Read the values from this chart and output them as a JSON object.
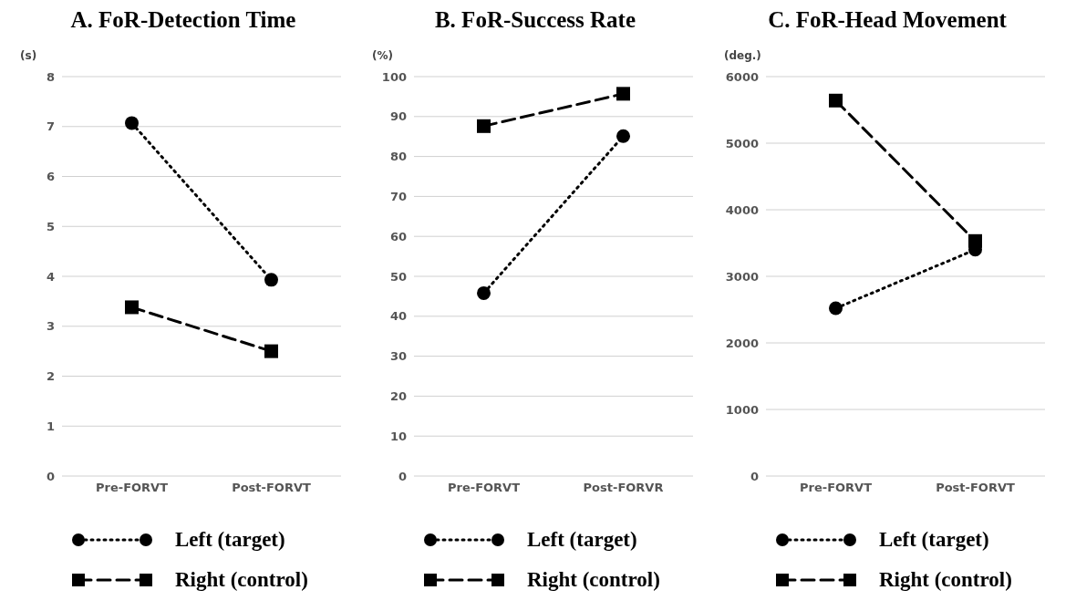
{
  "chart_data": [
    {
      "type": "line",
      "title": "A. FoR-Detection Time",
      "ylabel": "(s)",
      "categories": [
        "Pre-FORVT",
        "Post-FORVT"
      ],
      "ylim": [
        0,
        8
      ],
      "yticks": [
        0,
        1,
        2,
        3,
        4,
        5,
        6,
        7,
        8
      ],
      "grid": "y",
      "legend": "bottom",
      "series": [
        {
          "name": "Left (target)",
          "color": "#000000",
          "values": [
            7.07,
            3.93
          ],
          "marker": "circle",
          "line_style": "dotted"
        },
        {
          "name": "Right (control)",
          "color": "#000000",
          "values": [
            3.38,
            2.5
          ],
          "marker": "square",
          "line_style": "dashed"
        }
      ]
    },
    {
      "type": "line",
      "title": "B. FoR-Success Rate",
      "ylabel": "(%)",
      "categories": [
        "Pre-FORVT",
        "Post-FORVR"
      ],
      "ylim": [
        0,
        100
      ],
      "yticks": [
        0,
        10,
        20,
        30,
        40,
        50,
        60,
        70,
        80,
        90,
        100
      ],
      "grid": "y",
      "legend": "bottom",
      "series": [
        {
          "name": "Left (target)",
          "color": "#000000",
          "values": [
            45.8,
            85.1
          ],
          "marker": "circle",
          "line_style": "dotted"
        },
        {
          "name": "Right (control)",
          "color": "#000000",
          "values": [
            87.6,
            95.7
          ],
          "marker": "square",
          "line_style": "dashed"
        }
      ]
    },
    {
      "type": "line",
      "title": "C. FoR-Head Movement",
      "ylabel": "(deg.)",
      "categories": [
        "Pre-FORVT",
        "Post-FORVT"
      ],
      "ylim": [
        0,
        6000
      ],
      "yticks": [
        0,
        1000,
        2000,
        3000,
        4000,
        5000,
        6000
      ],
      "grid": "y",
      "legend": "bottom",
      "series": [
        {
          "name": "Left (target)",
          "color": "#000000",
          "values": [
            2520,
            3400
          ],
          "marker": "circle",
          "line_style": "dotted"
        },
        {
          "name": "Right (control)",
          "color": "#000000",
          "values": [
            5640,
            3530
          ],
          "marker": "square",
          "line_style": "dashed"
        }
      ]
    }
  ]
}
